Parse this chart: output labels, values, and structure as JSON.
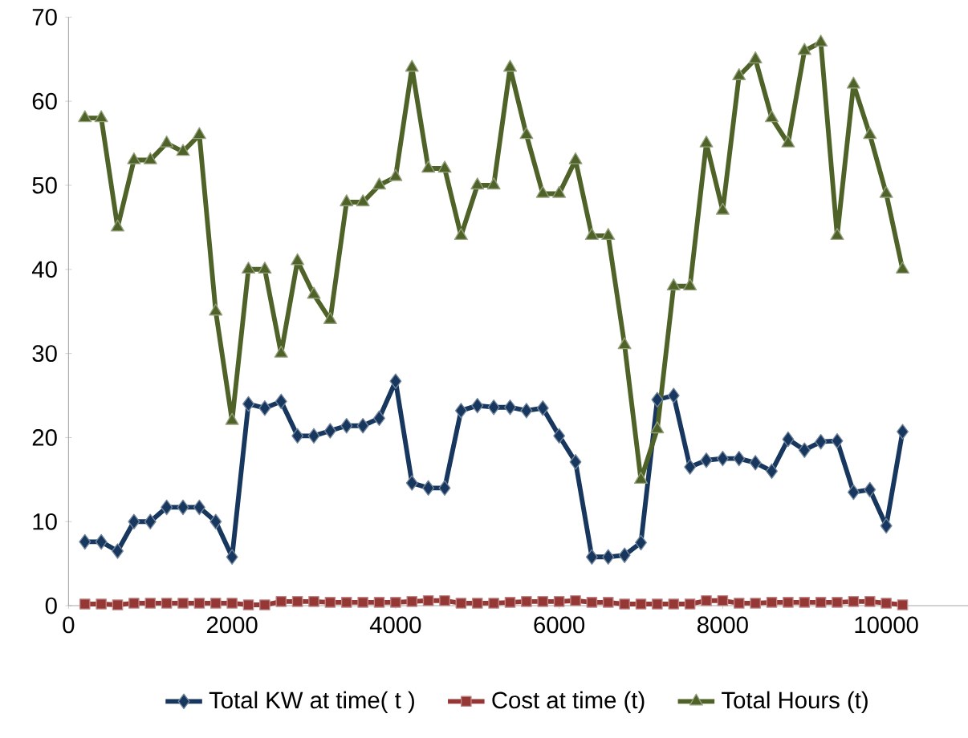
{
  "chart_data": {
    "type": "line",
    "x": [
      200,
      400,
      600,
      800,
      1000,
      1200,
      1400,
      1600,
      1800,
      2000,
      2200,
      2400,
      2600,
      2800,
      3000,
      3200,
      3400,
      3600,
      3800,
      4000,
      4200,
      4400,
      4600,
      4800,
      5000,
      5200,
      5400,
      5600,
      5800,
      6000,
      6200,
      6400,
      6600,
      6800,
      7000,
      7200,
      7400,
      7600,
      7800,
      8000,
      8200,
      8400,
      8600,
      8800,
      9000,
      9200,
      9400,
      9600,
      9800,
      10000,
      10200
    ],
    "series": [
      {
        "name": "Total KW at time( t )",
        "color": "#17375e",
        "marker": "diamond",
        "values": [
          7.6,
          7.6,
          6.5,
          10,
          10,
          11.7,
          11.7,
          11.7,
          10,
          5.8,
          24,
          23.5,
          24.3,
          20.2,
          20.2,
          20.8,
          21.4,
          21.4,
          22.3,
          26.7,
          14.6,
          14,
          14,
          23.2,
          23.8,
          23.6,
          23.6,
          23.2,
          23.5,
          20.2,
          17.1,
          5.8,
          5.8,
          6,
          7.5,
          24.5,
          25,
          16.5,
          17.3,
          17.5,
          17.5,
          17,
          16,
          19.8,
          18.5,
          19.5,
          19.6,
          13.5,
          13.8,
          9.5,
          20.7
        ]
      },
      {
        "name": "Cost at time (t)",
        "color": "#953735",
        "marker": "square",
        "values": [
          0.2,
          0.2,
          0.1,
          0.3,
          0.3,
          0.3,
          0.3,
          0.3,
          0.3,
          0.3,
          0.1,
          0.1,
          0.5,
          0.5,
          0.5,
          0.4,
          0.4,
          0.4,
          0.4,
          0.4,
          0.5,
          0.6,
          0.6,
          0.3,
          0.3,
          0.3,
          0.4,
          0.5,
          0.5,
          0.5,
          0.6,
          0.4,
          0.4,
          0.2,
          0.2,
          0.2,
          0.2,
          0.2,
          0.6,
          0.6,
          0.3,
          0.3,
          0.4,
          0.4,
          0.4,
          0.4,
          0.4,
          0.5,
          0.5,
          0.3,
          0.1
        ]
      },
      {
        "name": "Total Hours (t)",
        "color": "#4f6228",
        "marker": "triangle",
        "values": [
          58,
          58,
          45,
          53,
          53,
          55,
          54,
          56,
          35,
          22,
          40,
          40,
          30,
          41,
          37,
          34,
          48,
          48,
          50,
          51,
          64,
          52,
          52,
          44,
          50,
          50,
          64,
          56,
          49,
          49,
          53,
          44,
          44,
          31,
          15,
          21,
          38,
          38,
          55,
          47,
          63,
          65,
          58,
          55,
          66,
          67,
          44,
          62,
          56,
          49,
          40
        ]
      }
    ],
    "xlim": [
      0,
      11000
    ],
    "xticks": [
      0,
      2000,
      4000,
      6000,
      8000,
      10000
    ],
    "ylim": [
      0,
      70
    ],
    "yticks": [
      0,
      10,
      20,
      30,
      40,
      50,
      60,
      70
    ],
    "grid": false,
    "legend": "bottom",
    "line_style": "solid"
  }
}
